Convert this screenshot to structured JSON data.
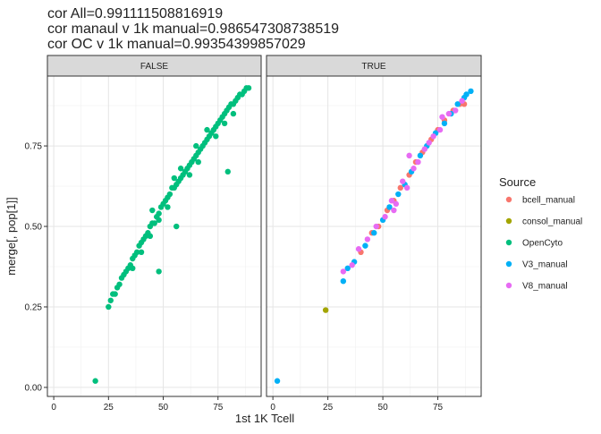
{
  "chart_data": {
    "type": "scatter",
    "title": [
      "cor All=0.991111508816919",
      "cor manaul v 1k manual=0.986547308738519",
      "cor OC v 1k manual=0.99354399857029"
    ],
    "x_label": "1st 1K Tcell",
    "y_label": "merge[, pop[1]]",
    "xlim": [
      -2.9,
      94.7
    ],
    "ylim": [
      -0.028,
      0.967
    ],
    "xticks": [
      0,
      25,
      50,
      75
    ],
    "yticks": [
      {
        "value": 0,
        "label": "0.00"
      },
      {
        "value": 0.25,
        "label": "0.25"
      },
      {
        "value": 0.5,
        "label": "0.50"
      },
      {
        "value": 0.75,
        "label": "0.75"
      }
    ],
    "grid": true,
    "legend": {
      "title": "Source",
      "position": "right",
      "entries": [
        {
          "name": "bcell_manual",
          "color": "#F8766D"
        },
        {
          "name": "consol_manual",
          "color": "#A3A500"
        },
        {
          "name": "OpenCyto",
          "color": "#00BF7D"
        },
        {
          "name": "V3_manual",
          "color": "#00B0F6"
        },
        {
          "name": "V8_manual",
          "color": "#E76BF3"
        }
      ]
    },
    "panels": [
      {
        "strip": "FALSE",
        "series": [
          {
            "color": "#00BF7D",
            "x": [
              25,
              26,
              27,
              28,
              29,
              30,
              31,
              32,
              33,
              34,
              35,
              36,
              37,
              38,
              39,
              40,
              41,
              42,
              43,
              44,
              45,
              46,
              47,
              48,
              49,
              50,
              51,
              52,
              53,
              54,
              55,
              56,
              57,
              58,
              59,
              60,
              61,
              62,
              63,
              64,
              65,
              66,
              67,
              68,
              69,
              70,
              71,
              72,
              73,
              74,
              75,
              76,
              77,
              78,
              79,
              80,
              81,
              82,
              83,
              84,
              85,
              86,
              87,
              88,
              44,
              48,
              52,
              58,
              62,
              66,
              70,
              74,
              78,
              82,
              45,
              55,
              65,
              36,
              40,
              19,
              48,
              56,
              79.5,
              89
            ],
            "values": [
              0.25,
              0.27,
              0.29,
              0.29,
              0.31,
              0.32,
              0.34,
              0.35,
              0.36,
              0.37,
              0.38,
              0.4,
              0.41,
              0.42,
              0.44,
              0.45,
              0.46,
              0.47,
              0.48,
              0.5,
              0.51,
              0.51,
              0.53,
              0.54,
              0.56,
              0.57,
              0.58,
              0.59,
              0.6,
              0.62,
              0.62,
              0.63,
              0.64,
              0.65,
              0.66,
              0.67,
              0.68,
              0.69,
              0.7,
              0.71,
              0.72,
              0.73,
              0.74,
              0.75,
              0.76,
              0.77,
              0.78,
              0.79,
              0.8,
              0.81,
              0.82,
              0.83,
              0.84,
              0.85,
              0.86,
              0.87,
              0.88,
              0.88,
              0.89,
              0.9,
              0.91,
              0.91,
              0.92,
              0.93,
              0.47,
              0.52,
              0.56,
              0.68,
              0.66,
              0.7,
              0.8,
              0.78,
              0.82,
              0.85,
              0.55,
              0.65,
              0.75,
              0.37,
              0.42,
              0.02,
              0.36,
              0.5,
              0.67,
              0.93
            ]
          }
        ]
      },
      {
        "strip": "TRUE",
        "series": [
          {
            "color": "#F8766D",
            "x": [
              40,
              45,
              48,
              52,
              55,
              58,
              62,
              65,
              68,
              72,
              75,
              78,
              82,
              85,
              87
            ],
            "values": [
              0.42,
              0.48,
              0.5,
              0.55,
              0.58,
              0.62,
              0.66,
              0.7,
              0.73,
              0.77,
              0.8,
              0.83,
              0.86,
              0.88,
              0.88
            ]
          },
          {
            "color": "#A3A500",
            "x": [
              24
            ],
            "values": [
              0.24
            ]
          },
          {
            "color": "#00B0F6",
            "x": [
              2,
              32,
              34,
              37,
              42,
              46,
              50,
              53,
              57,
              60,
              63,
              67,
              70,
              74,
              78,
              81,
              84,
              87,
              88,
              90
            ],
            "values": [
              0.02,
              0.33,
              0.37,
              0.39,
              0.44,
              0.48,
              0.52,
              0.56,
              0.6,
              0.63,
              0.67,
              0.72,
              0.75,
              0.79,
              0.82,
              0.85,
              0.88,
              0.9,
              0.91,
              0.92
            ]
          },
          {
            "color": "#E76BF3",
            "x": [
              32,
              36,
              39,
              43,
              47,
              51,
              54,
              56,
              59,
              61,
              64,
              66,
              69,
              71,
              73,
              76,
              77,
              80,
              83,
              86,
              62,
              55
            ],
            "values": [
              0.36,
              0.38,
              0.43,
              0.46,
              0.5,
              0.53,
              0.58,
              0.57,
              0.64,
              0.62,
              0.68,
              0.7,
              0.74,
              0.76,
              0.78,
              0.8,
              0.84,
              0.85,
              0.86,
              0.89,
              0.72,
              0.55
            ]
          }
        ]
      }
    ]
  }
}
